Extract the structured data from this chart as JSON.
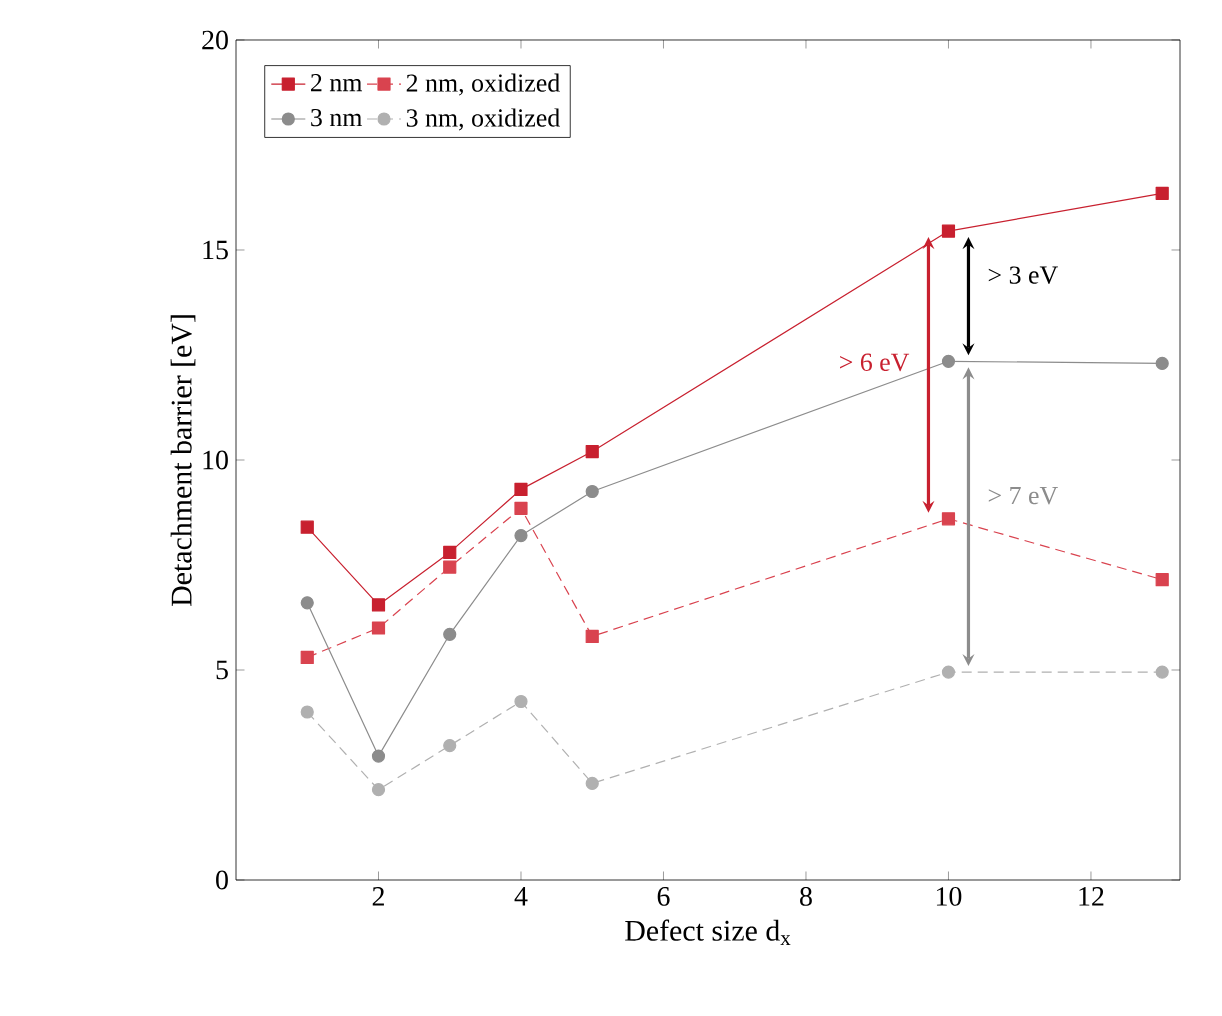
{
  "chart_data": {
    "type": "line",
    "xlabel": "Defect size d$_{x}$",
    "ylabel": "Detachment barrier [eV]",
    "x": [
      1,
      2,
      3,
      4,
      5,
      10,
      13
    ],
    "xlim": [
      0,
      13.25
    ],
    "ylim": [
      0,
      20
    ],
    "xticks": [
      2,
      4,
      6,
      8,
      10,
      12
    ],
    "yticks": [
      0,
      5,
      10,
      15,
      20
    ],
    "legend": "top left",
    "series": [
      {
        "name": "2 nm",
        "color": "#c8202f",
        "marker": "square",
        "line_style": "solid",
        "values": [
          8.4,
          6.55,
          7.8,
          9.3,
          10.2,
          15.45,
          16.35
        ]
      },
      {
        "name": "2 nm, oxidized",
        "color": "#d9434f",
        "marker": "square",
        "line_style": "dashed",
        "values": [
          5.3,
          6.0,
          7.45,
          8.85,
          5.8,
          8.6,
          7.15
        ]
      },
      {
        "name": "3 nm",
        "color": "#8c8c8c",
        "marker": "circle",
        "line_style": "solid",
        "values": [
          6.6,
          2.95,
          5.85,
          8.2,
          9.25,
          12.35,
          12.3
        ]
      },
      {
        "name": "3 nm, oxidized",
        "color": "#b0b0b0",
        "marker": "circle",
        "line_style": "dashed",
        "values": [
          4.0,
          2.15,
          3.2,
          4.25,
          2.3,
          4.95,
          4.95
        ]
      }
    ],
    "annotations": [
      "> 3 eV",
      "> 6 eV",
      "> 7 eV"
    ]
  }
}
